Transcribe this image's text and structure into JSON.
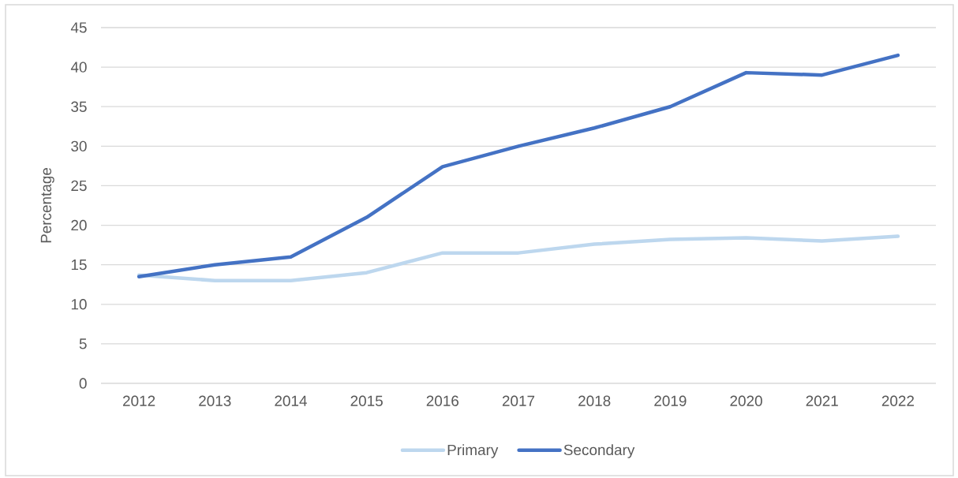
{
  "chart_data": {
    "type": "line",
    "ylabel": "Percentage",
    "categories": [
      "2012",
      "2013",
      "2014",
      "2015",
      "2016",
      "2017",
      "2018",
      "2019",
      "2020",
      "2021",
      "2022"
    ],
    "series": [
      {
        "name": "Primary",
        "color": "#bdd7ee",
        "values": [
          13.7,
          13,
          13,
          14,
          16.5,
          16.5,
          17.6,
          18.2,
          18.4,
          18,
          18.6
        ]
      },
      {
        "name": "Secondary",
        "color": "#4472c4",
        "values": [
          13.5,
          15,
          16,
          21,
          27.4,
          30,
          32.3,
          35,
          39.3,
          39,
          41.5
        ]
      }
    ],
    "ylim": [
      0,
      45
    ],
    "yticks": [
      0,
      5,
      10,
      15,
      20,
      25,
      30,
      35,
      40,
      45
    ],
    "grid": "y",
    "legend": "bottom"
  }
}
